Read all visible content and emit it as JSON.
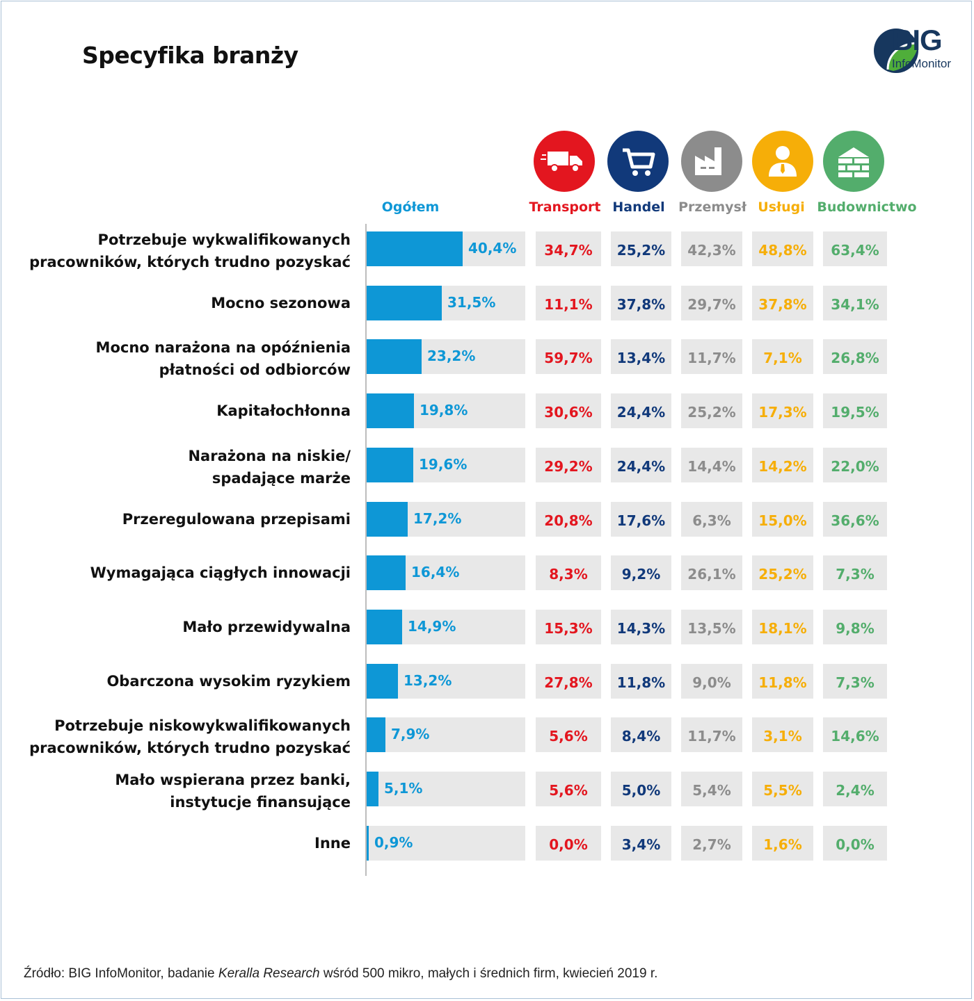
{
  "title": "Specyfika branży",
  "logo": {
    "big": "BIG",
    "sub": "InfoMonitor"
  },
  "colors": {
    "overall": "#0e97d6",
    "transport": "#e3161f",
    "handel": "#11397a",
    "przemysl": "#8c8c8c",
    "uslugi": "#f6ae08",
    "budownictwo": "#53ad6c"
  },
  "icons": {
    "transport": "truck-icon",
    "handel": "shopping-cart-icon",
    "przemysl": "factory-icon",
    "uslugi": "businessman-icon",
    "budownictwo": "brick-wall-icon"
  },
  "chart_data": {
    "type": "bar",
    "title": "Specyfika branży",
    "orientation": "horizontal",
    "xlim": [
      0,
      70
    ],
    "grid": false,
    "categories": [
      "Potrzebuje wykwalifikowanych\npracowników, których trudno pozyskać",
      "Mocno sezonowa",
      "Mocno narażona na opóźnienia\npłatności od odbiorców",
      "Kapitałochłonna",
      "Narażona na niskie/\nspadające marże",
      "Przeregulowana przepisami",
      "Wymagająca ciągłych innowacji",
      "Mało przewidywalna",
      "Obarczona wysokim ryzykiem",
      "Potrzebuje niskowykwalifikowanych\npracowników, których trudno pozyskać",
      "Mało wspierana przez banki,\ninstytucje finansujące",
      "Inne"
    ],
    "series": [
      {
        "name": "Ogółem",
        "values": [
          40.4,
          31.5,
          23.2,
          19.8,
          19.6,
          17.2,
          16.4,
          14.9,
          13.2,
          7.9,
          5.1,
          0.9
        ],
        "labels": [
          "40,4%",
          "31,5%",
          "23,2%",
          "19,8%",
          "19,6%",
          "17,2%",
          "16,4%",
          "14,9%",
          "13,2%",
          "7,9%",
          "5,1%",
          "0,9%"
        ]
      },
      {
        "name": "Transport",
        "values": [
          34.7,
          11.1,
          59.7,
          30.6,
          29.2,
          20.8,
          8.3,
          15.3,
          27.8,
          5.6,
          5.6,
          0.0
        ],
        "labels": [
          "34,7%",
          "11,1%",
          "59,7%",
          "30,6%",
          "29,2%",
          "20,8%",
          "8,3%",
          "15,3%",
          "27,8%",
          "5,6%",
          "5,6%",
          "0,0%"
        ]
      },
      {
        "name": "Handel",
        "values": [
          25.2,
          37.8,
          13.4,
          24.4,
          24.4,
          17.6,
          9.2,
          14.3,
          11.8,
          8.4,
          5.0,
          3.4
        ],
        "labels": [
          "25,2%",
          "37,8%",
          "13,4%",
          "24,4%",
          "24,4%",
          "17,6%",
          "9,2%",
          "14,3%",
          "11,8%",
          "8,4%",
          "5,0%",
          "3,4%"
        ]
      },
      {
        "name": "Przemysł",
        "values": [
          42.3,
          29.7,
          11.7,
          25.2,
          14.4,
          6.3,
          26.1,
          13.5,
          9.0,
          11.7,
          5.4,
          2.7
        ],
        "labels": [
          "42,3%",
          "29,7%",
          "11,7%",
          "25,2%",
          "14,4%",
          "6,3%",
          "26,1%",
          "13,5%",
          "9,0%",
          "11,7%",
          "5,4%",
          "2,7%"
        ]
      },
      {
        "name": "Usługi",
        "values": [
          48.8,
          37.8,
          7.1,
          17.3,
          14.2,
          15.0,
          25.2,
          18.1,
          11.8,
          3.1,
          5.5,
          1.6
        ],
        "labels": [
          "48,8%",
          "37,8%",
          "7,1%",
          "17,3%",
          "14,2%",
          "15,0%",
          "25,2%",
          "18,1%",
          "11,8%",
          "3,1%",
          "5,5%",
          "1,6%"
        ]
      },
      {
        "name": "Budownictwo",
        "values": [
          63.4,
          34.1,
          26.8,
          19.5,
          22.0,
          36.6,
          7.3,
          9.8,
          7.3,
          14.6,
          2.4,
          0.0
        ],
        "labels": [
          "63,4%",
          "34,1%",
          "26,8%",
          "19,5%",
          "22,0%",
          "36,6%",
          "7,3%",
          "9,8%",
          "7,3%",
          "14,6%",
          "2,4%",
          "0,0%"
        ]
      }
    ]
  },
  "source": {
    "prefix": "Źródło: BIG InfoMonitor, badanie ",
    "italic": "Keralla Research",
    "suffix": " wśród 500 mikro, małych i średnich firm, kwiecień 2019 r."
  }
}
